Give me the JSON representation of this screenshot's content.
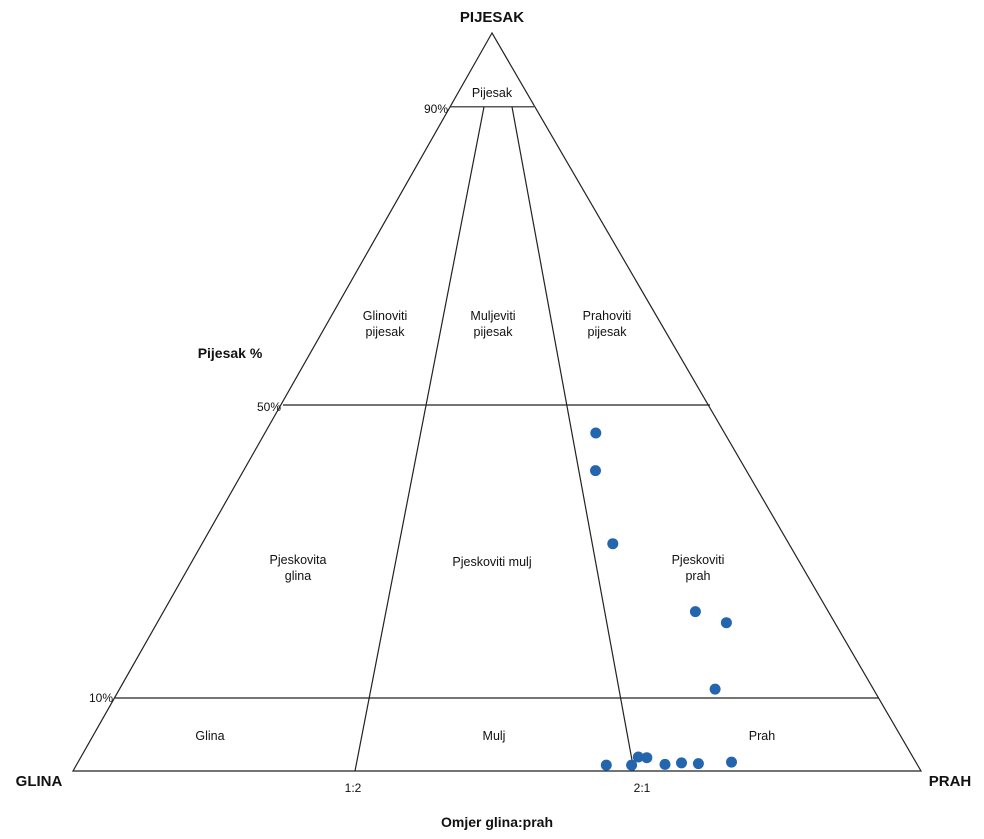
{
  "corners": {
    "top": "PIJESAK",
    "left": "GLINA",
    "right": "PRAH"
  },
  "axis": {
    "sand_title": "Pijesak %",
    "sand_ticks": [
      "90%",
      "50%",
      "10%"
    ],
    "ratio_title": "Omjer glina:prah",
    "ratio_ticks": [
      "1:2",
      "2:1"
    ]
  },
  "regions": [
    [
      "Pijesak"
    ],
    [
      "Glinoviti",
      "pijesak"
    ],
    [
      "Muljeviti",
      "pijesak"
    ],
    [
      "Prahoviti",
      "pijesak"
    ],
    [
      "Pjeskovita",
      "glina"
    ],
    [
      "Pjeskoviti mulj"
    ],
    [
      "Pjeskoviti",
      "prah"
    ],
    [
      "Glina"
    ],
    [
      "Mulj"
    ],
    [
      "Prah"
    ]
  ],
  "colors": {
    "points": "#2366ad",
    "lines": "#222222"
  },
  "chart_data": {
    "type": "ternary-scatter",
    "note_units": "sand % and clay:silt ratio as silt fraction of fines",
    "points": [
      {
        "sand": 45.8,
        "silt_frac": 0.72
      },
      {
        "sand": 40.7,
        "silt_frac": 0.7
      },
      {
        "sand": 30.8,
        "silt_frac": 0.7
      },
      {
        "sand": 21.6,
        "silt_frac": 0.8
      },
      {
        "sand": 20.1,
        "silt_frac": 0.84
      },
      {
        "sand": 11.1,
        "silt_frac": 0.79
      },
      {
        "sand": 1.9,
        "silt_frac": 0.67
      },
      {
        "sand": 1.8,
        "silt_frac": 0.68
      },
      {
        "sand": 1.2,
        "silt_frac": 0.78
      },
      {
        "sand": 1.1,
        "silt_frac": 0.72
      },
      {
        "sand": 1.0,
        "silt_frac": 0.74
      },
      {
        "sand": 0.9,
        "silt_frac": 0.7
      },
      {
        "sand": 0.8,
        "silt_frac": 0.63
      },
      {
        "sand": 0.8,
        "silt_frac": 0.66
      }
    ]
  }
}
